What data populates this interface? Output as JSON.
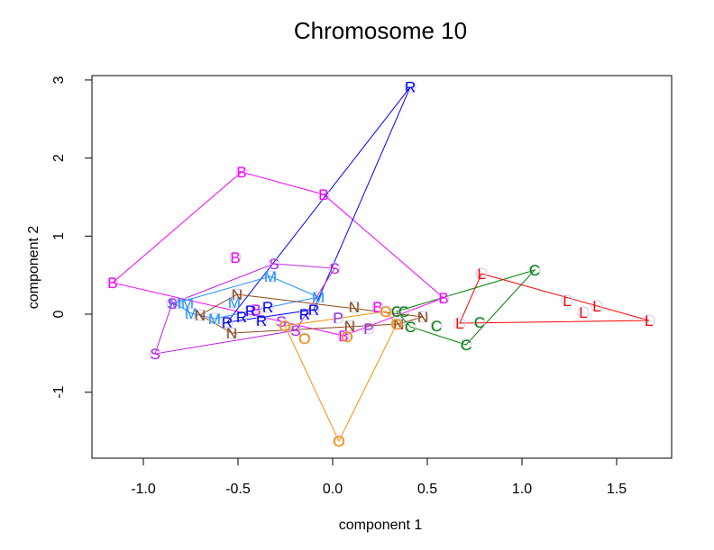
{
  "chart_data": {
    "type": "scatter",
    "title": "Chromosome 10",
    "xlabel": "component 1",
    "ylabel": "component 2",
    "xlim": [
      -1.25,
      1.78
    ],
    "ylim": [
      -1.85,
      3.05
    ],
    "xticks": [
      -1.0,
      -0.5,
      0.0,
      0.5,
      1.0,
      1.5
    ],
    "xtick_labels": [
      "-1.0",
      "-0.5",
      "0.0",
      "0.5",
      "1.0",
      "1.5"
    ],
    "yticks": [
      -1,
      0,
      1,
      2,
      3
    ],
    "ytick_labels": [
      "-1",
      "0",
      "1",
      "2",
      "3"
    ],
    "grid": false,
    "legend": "none",
    "marker_note": "each point drawn as a faint open circle with a group letter; each group's convex hull outlined",
    "circle_color": "#c8c8f0",
    "series": [
      {
        "name": "B",
        "color": "#ff00ff",
        "points": [
          [
            -1.162,
            0.404
          ],
          [
            -0.481,
            1.822
          ],
          [
            -0.048,
            1.534
          ],
          [
            0.586,
            0.208
          ],
          [
            0.057,
            -0.277
          ],
          [
            -0.514,
            0.727
          ],
          [
            -0.405,
            0.058
          ],
          [
            0.238,
            0.092
          ]
        ],
        "hull": [
          0,
          1,
          2,
          3,
          4
        ]
      },
      {
        "name": "R",
        "color": "#0000ff",
        "points": [
          [
            0.41,
            2.91
          ],
          [
            -0.481,
            -0.035
          ],
          [
            -0.433,
            0.046
          ],
          [
            -0.343,
            0.092
          ],
          [
            -0.376,
            -0.081
          ],
          [
            -0.148,
            0.0
          ],
          [
            -0.1,
            0.058
          ],
          [
            -0.557,
            -0.104
          ]
        ],
        "hull": [
          0,
          7,
          6
        ]
      },
      {
        "name": "M",
        "color": "#1e90ff",
        "points": [
          [
            -0.833,
            0.138
          ],
          [
            -0.767,
            0.138
          ],
          [
            -0.748,
            0.012
          ],
          [
            -0.624,
            -0.058
          ],
          [
            -0.519,
            0.15
          ],
          [
            -0.329,
            0.484
          ],
          [
            -0.076,
            0.219
          ]
        ],
        "hull": [
          0,
          5,
          6,
          3,
          2
        ]
      },
      {
        "name": "N",
        "color": "#8b4513",
        "points": [
          [
            -0.505,
            0.254
          ],
          [
            -0.7,
            -0.012
          ],
          [
            -0.533,
            -0.242
          ],
          [
            0.114,
            0.092
          ],
          [
            0.09,
            -0.15
          ],
          [
            0.476,
            -0.035
          ],
          [
            0.348,
            -0.127
          ]
        ],
        "hull": [
          0,
          5,
          6,
          2,
          1
        ]
      },
      {
        "name": "S",
        "color": "#bf1fe6",
        "points": [
          [
            -0.938,
            -0.508
          ],
          [
            -0.848,
            0.138
          ],
          [
            -0.31,
            0.646
          ],
          [
            0.01,
            0.588
          ],
          [
            -0.271,
            -0.092
          ],
          [
            -0.195,
            -0.208
          ]
        ],
        "hull": [
          1,
          2,
          3,
          5,
          0
        ]
      },
      {
        "name": "P",
        "color": "#8a2be2",
        "points": [
          [
            0.029,
            -0.046
          ],
          [
            0.19,
            -0.185
          ]
        ],
        "hull": []
      },
      {
        "name": "O",
        "color": "#ff8c00",
        "points": [
          [
            0.033,
            -1.626
          ],
          [
            -0.252,
            -0.15
          ],
          [
            -0.148,
            -0.311
          ],
          [
            0.281,
            0.035
          ],
          [
            0.338,
            -0.127
          ],
          [
            0.076,
            -0.288
          ]
        ],
        "hull": [
          1,
          3,
          4,
          0
        ]
      },
      {
        "name": "C",
        "color": "#008000",
        "points": [
          [
            1.067,
            0.565
          ],
          [
            0.705,
            -0.392
          ],
          [
            0.41,
            -0.161
          ],
          [
            0.338,
            0.035
          ],
          [
            0.376,
            0.035
          ],
          [
            0.548,
            -0.15
          ],
          [
            0.776,
            -0.104
          ]
        ],
        "hull": [
          0,
          3,
          2,
          1
        ]
      },
      {
        "name": "L",
        "color": "#ff0000",
        "points": [
          [
            0.786,
            0.519
          ],
          [
            1.671,
            -0.081
          ],
          [
            0.671,
            -0.115
          ],
          [
            1.238,
            0.173
          ],
          [
            1.324,
            0.023
          ],
          [
            1.395,
            0.104
          ]
        ],
        "hull": [
          0,
          1,
          2
        ]
      }
    ]
  }
}
